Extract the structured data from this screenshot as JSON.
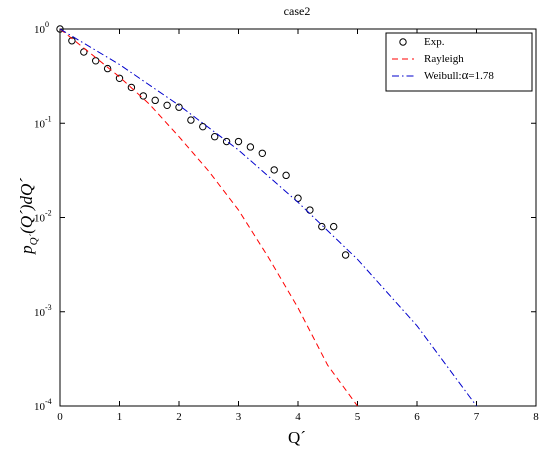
{
  "chart_data": {
    "type": "line",
    "title": "case2",
    "xlabel": "Q´",
    "ylabel": "p_Q´(Q´)dQ´",
    "ylabel_parts": {
      "main": "p",
      "sub": "Q´",
      "rest": "(Q´)dQ´"
    },
    "x_scale": "linear",
    "y_scale": "log",
    "xlim": [
      0,
      8
    ],
    "ylim": [
      0.0001,
      1
    ],
    "x_ticks": [
      0,
      1,
      2,
      3,
      4,
      5,
      6,
      7,
      8
    ],
    "x_tick_labels": [
      "0",
      "1",
      "2",
      "3",
      "4",
      "5",
      "6",
      "7",
      "8"
    ],
    "y_ticks": [
      0.0001,
      0.001,
      0.01,
      0.1,
      1
    ],
    "y_tick_labels": [
      {
        "base": "10",
        "exp": "-4"
      },
      {
        "base": "10",
        "exp": "-3"
      },
      {
        "base": "10",
        "exp": "-2"
      },
      {
        "base": "10",
        "exp": "-1"
      },
      {
        "base": "10",
        "exp": "0"
      }
    ],
    "grid": false,
    "legend_position": "top-right",
    "series": [
      {
        "name": "Exp.",
        "style": "markers",
        "marker": "open-circle",
        "color": "#000000",
        "x": [
          0.0,
          0.2,
          0.4,
          0.6,
          0.8,
          1.0,
          1.2,
          1.4,
          1.6,
          1.8,
          2.0,
          2.2,
          2.4,
          2.6,
          2.8,
          3.0,
          3.2,
          3.4,
          3.6,
          3.8,
          4.0,
          4.2,
          4.4,
          4.6,
          4.8
        ],
        "y": [
          1.0,
          0.75,
          0.57,
          0.46,
          0.38,
          0.3,
          0.24,
          0.195,
          0.175,
          0.155,
          0.148,
          0.108,
          0.092,
          0.072,
          0.064,
          0.064,
          0.056,
          0.048,
          0.032,
          0.028,
          0.016,
          0.012,
          0.008,
          0.008,
          0.004
        ]
      },
      {
        "name": "Rayleigh",
        "style": "dashed",
        "color": "#ff0000",
        "x": [
          0,
          0.5,
          1.0,
          1.5,
          2.0,
          2.5,
          3.0,
          3.5,
          4.0,
          4.5,
          5.0
        ],
        "y": [
          1.0,
          0.56,
          0.31,
          0.16,
          0.072,
          0.031,
          0.012,
          0.0038,
          0.0011,
          0.00027,
          0.0001
        ]
      },
      {
        "name": "Weibull:α=1.78",
        "name_parts": {
          "prefix": "Weibull:",
          "greek": "α",
          "suffix": "=1.78"
        },
        "style": "dashdot",
        "color": "#0000cc",
        "x": [
          0,
          1,
          2,
          3,
          4,
          5,
          6,
          7
        ],
        "y": [
          1.0,
          0.42,
          0.155,
          0.052,
          0.0145,
          0.0036,
          0.00071,
          0.0001
        ]
      }
    ]
  }
}
